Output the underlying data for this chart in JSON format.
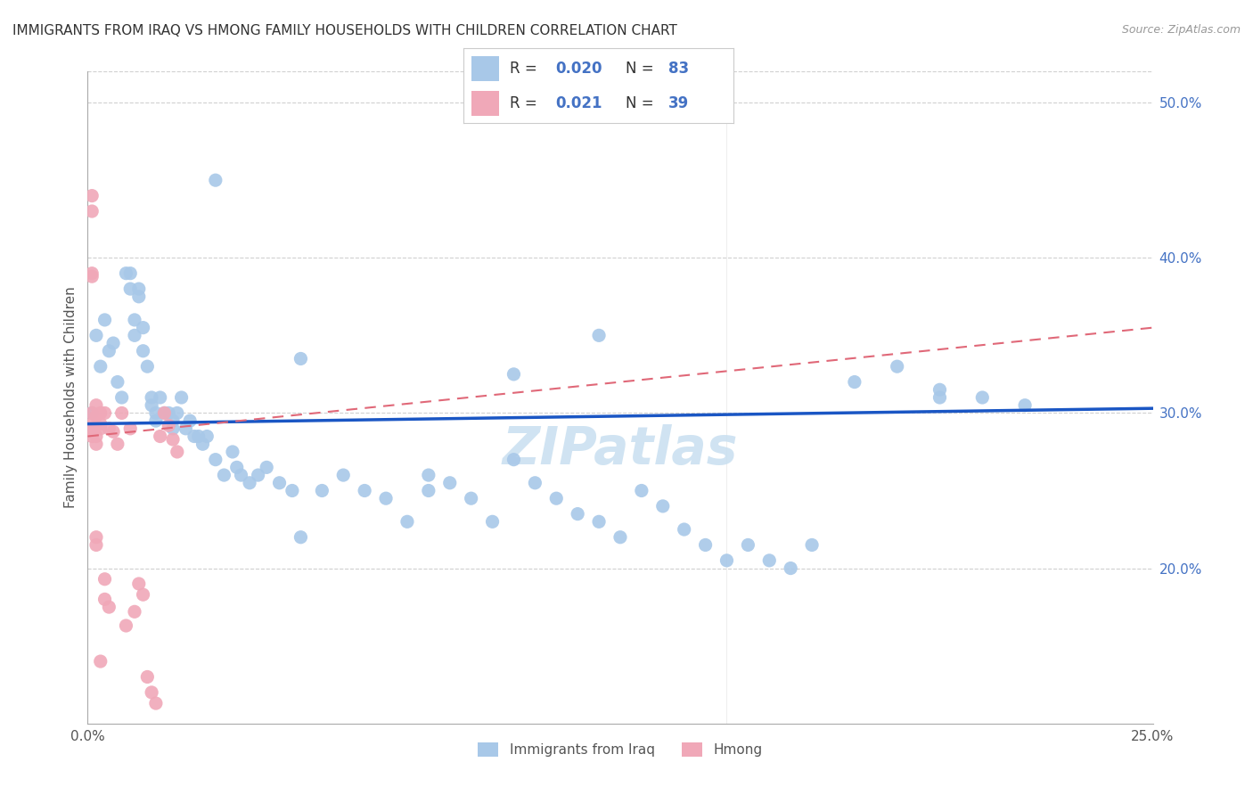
{
  "title": "IMMIGRANTS FROM IRAQ VS HMONG FAMILY HOUSEHOLDS WITH CHILDREN CORRELATION CHART",
  "source": "Source: ZipAtlas.com",
  "ylabel": "Family Households with Children",
  "xlim": [
    0.0,
    0.25
  ],
  "ylim": [
    0.1,
    0.52
  ],
  "x_ticks": [
    0.0,
    0.05,
    0.1,
    0.15,
    0.2,
    0.25
  ],
  "x_tick_labels": [
    "0.0%",
    "",
    "",
    "",
    "",
    "25.0%"
  ],
  "y_ticks_right": [
    0.2,
    0.3,
    0.4,
    0.5
  ],
  "y_tick_labels_right": [
    "20.0%",
    "30.0%",
    "40.0%",
    "50.0%"
  ],
  "iraq_color": "#a8c8e8",
  "hmong_color": "#f0a8b8",
  "iraq_line_color": "#1a56c4",
  "hmong_line_color": "#e06878",
  "legend_iraq_label": "Immigrants from Iraq",
  "legend_hmong_label": "Hmong",
  "legend_r_iraq": "0.020",
  "legend_n_iraq": "83",
  "legend_r_hmong": "0.021",
  "legend_n_hmong": "39",
  "iraq_trend_x": [
    0.0,
    0.25
  ],
  "iraq_trend_y": [
    0.293,
    0.303
  ],
  "hmong_trend_x": [
    0.0,
    0.25
  ],
  "hmong_trend_y": [
    0.285,
    0.355
  ],
  "iraq_x": [
    0.001,
    0.002,
    0.003,
    0.004,
    0.005,
    0.006,
    0.007,
    0.008,
    0.009,
    0.01,
    0.01,
    0.011,
    0.011,
    0.012,
    0.012,
    0.013,
    0.013,
    0.014,
    0.015,
    0.015,
    0.016,
    0.016,
    0.017,
    0.018,
    0.019,
    0.02,
    0.02,
    0.021,
    0.022,
    0.023,
    0.024,
    0.025,
    0.026,
    0.027,
    0.028,
    0.03,
    0.032,
    0.034,
    0.035,
    0.036,
    0.038,
    0.04,
    0.042,
    0.045,
    0.048,
    0.05,
    0.055,
    0.06,
    0.065,
    0.07,
    0.075,
    0.08,
    0.085,
    0.09,
    0.095,
    0.1,
    0.105,
    0.11,
    0.115,
    0.12,
    0.125,
    0.13,
    0.135,
    0.14,
    0.145,
    0.15,
    0.155,
    0.16,
    0.165,
    0.17,
    0.18,
    0.19,
    0.2,
    0.21,
    0.22,
    0.03,
    0.05,
    0.08,
    0.1,
    0.12,
    0.2
  ],
  "iraq_y": [
    0.3,
    0.35,
    0.33,
    0.36,
    0.34,
    0.345,
    0.32,
    0.31,
    0.39,
    0.38,
    0.39,
    0.36,
    0.35,
    0.38,
    0.375,
    0.355,
    0.34,
    0.33,
    0.31,
    0.305,
    0.3,
    0.295,
    0.31,
    0.3,
    0.3,
    0.29,
    0.295,
    0.3,
    0.31,
    0.29,
    0.295,
    0.285,
    0.285,
    0.28,
    0.285,
    0.27,
    0.26,
    0.275,
    0.265,
    0.26,
    0.255,
    0.26,
    0.265,
    0.255,
    0.25,
    0.22,
    0.25,
    0.26,
    0.25,
    0.245,
    0.23,
    0.25,
    0.255,
    0.245,
    0.23,
    0.27,
    0.255,
    0.245,
    0.235,
    0.23,
    0.22,
    0.25,
    0.24,
    0.225,
    0.215,
    0.205,
    0.215,
    0.205,
    0.2,
    0.215,
    0.32,
    0.33,
    0.315,
    0.31,
    0.305,
    0.45,
    0.335,
    0.26,
    0.325,
    0.35,
    0.31
  ],
  "hmong_x": [
    0.001,
    0.001,
    0.001,
    0.001,
    0.001,
    0.001,
    0.001,
    0.001,
    0.002,
    0.002,
    0.002,
    0.002,
    0.002,
    0.002,
    0.003,
    0.003,
    0.003,
    0.003,
    0.004,
    0.004,
    0.004,
    0.005,
    0.005,
    0.006,
    0.007,
    0.008,
    0.009,
    0.01,
    0.011,
    0.012,
    0.013,
    0.014,
    0.015,
    0.016,
    0.017,
    0.018,
    0.019,
    0.02,
    0.021
  ],
  "hmong_y": [
    0.44,
    0.43,
    0.39,
    0.388,
    0.3,
    0.293,
    0.29,
    0.285,
    0.305,
    0.298,
    0.285,
    0.28,
    0.22,
    0.215,
    0.3,
    0.293,
    0.29,
    0.14,
    0.3,
    0.193,
    0.18,
    0.29,
    0.175,
    0.288,
    0.28,
    0.3,
    0.163,
    0.29,
    0.172,
    0.19,
    0.183,
    0.13,
    0.12,
    0.113,
    0.285,
    0.3,
    0.292,
    0.283,
    0.275
  ],
  "watermark": "ZIPatlas",
  "watermark_color": "#c8dff0",
  "grid_color": "#d0d0d0",
  "spine_color": "#aaaaaa",
  "title_color": "#333333",
  "label_color": "#555555",
  "right_tick_color": "#4472c4",
  "legend_text_color": "#333333",
  "legend_num_color": "#4472c4"
}
